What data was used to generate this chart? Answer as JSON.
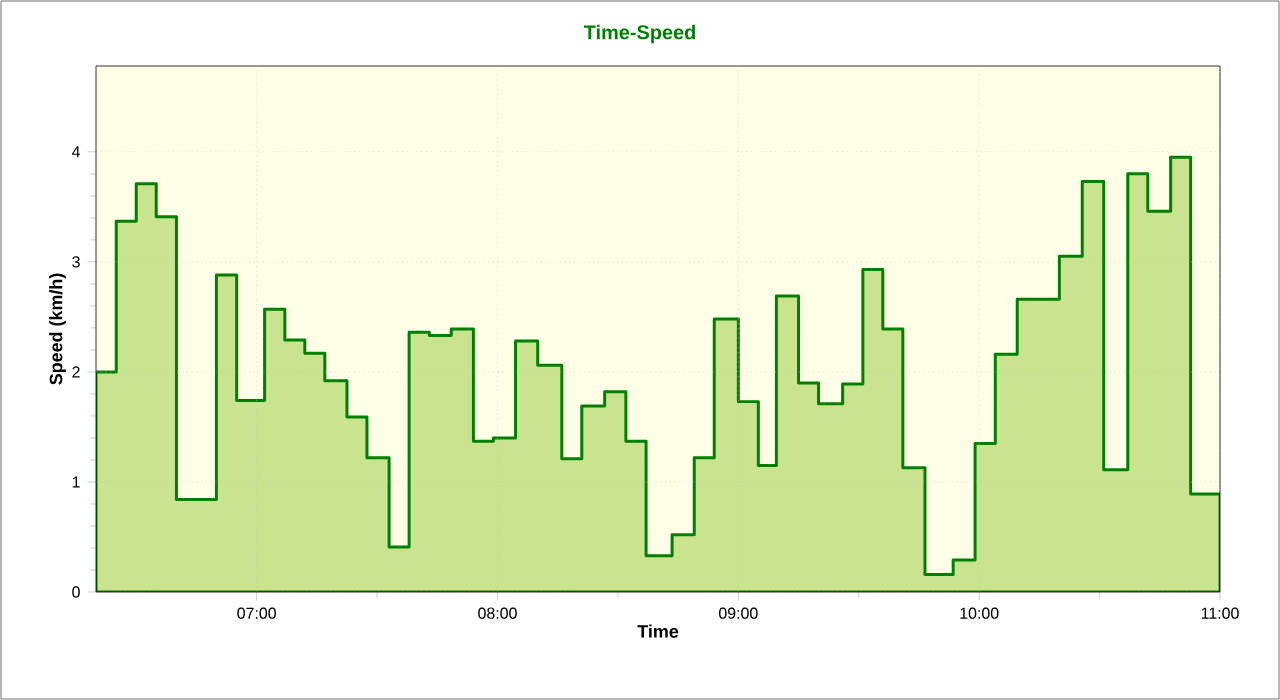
{
  "chart_data": {
    "type": "step",
    "title": "Time-Speed",
    "xlabel": "Time",
    "ylabel": "Speed (km/h)",
    "x": [
      6.333,
      6.417,
      6.5,
      6.583,
      6.667,
      6.833,
      6.917,
      7.033,
      7.117,
      7.2,
      7.283,
      7.375,
      7.458,
      7.55,
      7.633,
      7.717,
      7.808,
      7.9,
      7.983,
      8.075,
      8.167,
      8.267,
      8.35,
      8.445,
      8.533,
      8.617,
      8.725,
      8.817,
      8.9,
      9.0,
      9.083,
      9.158,
      9.25,
      9.333,
      9.433,
      9.517,
      9.6,
      9.683,
      9.775,
      9.892,
      9.983,
      10.067,
      10.158,
      10.333,
      10.428,
      10.517,
      10.617,
      10.7,
      10.795,
      10.878,
      11.0
    ],
    "series": [
      {
        "type": "area",
        "color": "#c9e38f",
        "values": [
          2.0,
          3.37,
          3.71,
          3.41,
          0.84,
          2.88,
          1.74,
          2.57,
          2.29,
          2.17,
          1.92,
          1.59,
          1.22,
          0.41,
          2.36,
          2.33,
          2.39,
          1.37,
          1.4,
          2.28,
          2.06,
          1.21,
          1.69,
          1.82,
          1.37,
          0.33,
          0.52,
          1.22,
          2.48,
          1.73,
          1.15,
          2.69,
          1.9,
          1.71,
          1.89,
          2.93,
          2.39,
          1.13,
          0.16,
          0.29,
          1.35,
          2.16,
          2.66,
          3.05,
          3.73,
          1.11,
          3.8,
          3.46,
          3.95,
          0.89,
          0.89
        ]
      }
    ],
    "xlim": [
      6.333,
      11.0
    ],
    "ylim": [
      0,
      4.78
    ],
    "xticks": [
      {
        "value": 7,
        "label": "07:00"
      },
      {
        "value": 8,
        "label": "08:00"
      },
      {
        "value": 9,
        "label": "09:00"
      },
      {
        "value": 10,
        "label": "10:00"
      },
      {
        "value": 11,
        "label": "11:00"
      }
    ],
    "yticks": [
      0,
      1,
      2,
      3,
      4
    ],
    "grid": true
  }
}
